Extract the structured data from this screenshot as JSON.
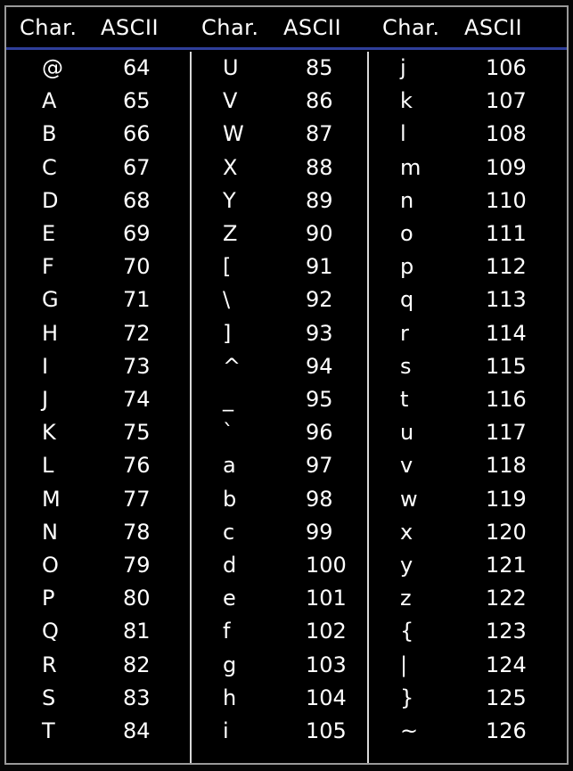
{
  "header": {
    "columns": [
      "Char.",
      "ASCII",
      "Char.",
      "ASCII",
      "Char.",
      "ASCII"
    ]
  },
  "colors": {
    "background": "#000000",
    "text": "#ffffff",
    "header_underline": "#2f3f9a",
    "divider": "#d8d8d8",
    "border": "#9a9a9a"
  },
  "table": {
    "columns": [
      {
        "rows": [
          {
            "char": "@",
            "code": "64"
          },
          {
            "char": "A",
            "code": "65"
          },
          {
            "char": "B",
            "code": "66"
          },
          {
            "char": "C",
            "code": "67"
          },
          {
            "char": "D",
            "code": "68"
          },
          {
            "char": "E",
            "code": "69"
          },
          {
            "char": "F",
            "code": "70"
          },
          {
            "char": "G",
            "code": "71"
          },
          {
            "char": "H",
            "code": "72"
          },
          {
            "char": "I",
            "code": "73"
          },
          {
            "char": "J",
            "code": "74"
          },
          {
            "char": "K",
            "code": "75"
          },
          {
            "char": "L",
            "code": "76"
          },
          {
            "char": "M",
            "code": "77"
          },
          {
            "char": "N",
            "code": "78"
          },
          {
            "char": "O",
            "code": "79"
          },
          {
            "char": "P",
            "code": "80"
          },
          {
            "char": "Q",
            "code": "81"
          },
          {
            "char": "R",
            "code": "82"
          },
          {
            "char": "S",
            "code": "83"
          },
          {
            "char": "T",
            "code": "84"
          }
        ]
      },
      {
        "rows": [
          {
            "char": "U",
            "code": "85"
          },
          {
            "char": "V",
            "code": "86"
          },
          {
            "char": "W",
            "code": "87"
          },
          {
            "char": "X",
            "code": "88"
          },
          {
            "char": "Y",
            "code": "89"
          },
          {
            "char": "Z",
            "code": "90"
          },
          {
            "char": "[",
            "code": "91"
          },
          {
            "char": "\\",
            "code": "92"
          },
          {
            "char": "]",
            "code": "93"
          },
          {
            "char": "^",
            "code": "94"
          },
          {
            "char": "_",
            "code": "95"
          },
          {
            "char": "`",
            "code": "96"
          },
          {
            "char": "a",
            "code": "97"
          },
          {
            "char": "b",
            "code": "98"
          },
          {
            "char": "c",
            "code": "99"
          },
          {
            "char": "d",
            "code": "100"
          },
          {
            "char": "e",
            "code": "101"
          },
          {
            "char": "f",
            "code": "102"
          },
          {
            "char": "g",
            "code": "103"
          },
          {
            "char": "h",
            "code": "104"
          },
          {
            "char": "i",
            "code": "105"
          }
        ]
      },
      {
        "rows": [
          {
            "char": "j",
            "code": "106"
          },
          {
            "char": "k",
            "code": "107"
          },
          {
            "char": "l",
            "code": "108"
          },
          {
            "char": "m",
            "code": "109"
          },
          {
            "char": "n",
            "code": "110"
          },
          {
            "char": "o",
            "code": "111"
          },
          {
            "char": "p",
            "code": "112"
          },
          {
            "char": "q",
            "code": "113"
          },
          {
            "char": "r",
            "code": "114"
          },
          {
            "char": "s",
            "code": "115"
          },
          {
            "char": "t",
            "code": "116"
          },
          {
            "char": "u",
            "code": "117"
          },
          {
            "char": "v",
            "code": "118"
          },
          {
            "char": "w",
            "code": "119"
          },
          {
            "char": "x",
            "code": "120"
          },
          {
            "char": "y",
            "code": "121"
          },
          {
            "char": "z",
            "code": "122"
          },
          {
            "char": "{",
            "code": "123"
          },
          {
            "char": "|",
            "code": "124"
          },
          {
            "char": "}",
            "code": "125"
          },
          {
            "char": "~",
            "code": "126"
          }
        ]
      }
    ]
  }
}
